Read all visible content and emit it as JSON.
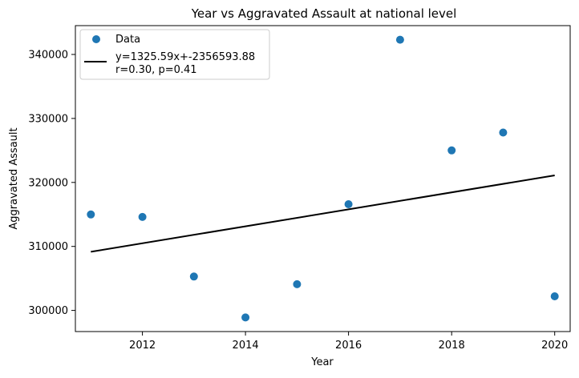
{
  "chart_data": {
    "type": "scatter",
    "title": "Year vs Aggravated Assault at national level",
    "xlabel": "Year",
    "ylabel": "Aggravated Assault",
    "xlim": [
      2010.7,
      2020.3
    ],
    "ylim": [
      296700,
      344500
    ],
    "x_ticks": [
      2012,
      2014,
      2016,
      2018,
      2020
    ],
    "y_ticks": [
      300000,
      310000,
      320000,
      330000,
      340000
    ],
    "grid": false,
    "legend_position": "top-left",
    "series": [
      {
        "name": "Data",
        "kind": "scatter",
        "color": "#1f77b4",
        "points": [
          {
            "x": 2011,
            "y": 315000
          },
          {
            "x": 2012,
            "y": 314600
          },
          {
            "x": 2013,
            "y": 305300
          },
          {
            "x": 2014,
            "y": 298900
          },
          {
            "x": 2015,
            "y": 304100
          },
          {
            "x": 2016,
            "y": 316600
          },
          {
            "x": 2017,
            "y": 342300
          },
          {
            "x": 2018,
            "y": 325000
          },
          {
            "x": 2019,
            "y": 327800
          },
          {
            "x": 2020,
            "y": 302200
          }
        ]
      },
      {
        "name": "y=1325.59x+-2356593.88\nr=0.30, p=0.41",
        "kind": "line",
        "color": "#000000",
        "slope": 1325.59,
        "intercept": -2356593.88,
        "x_range": [
          2011,
          2020
        ]
      }
    ],
    "legend": [
      {
        "label": "Data"
      },
      {
        "label_lines": [
          "y=1325.59x+-2356593.88",
          "r=0.30, p=0.41"
        ]
      }
    ]
  }
}
